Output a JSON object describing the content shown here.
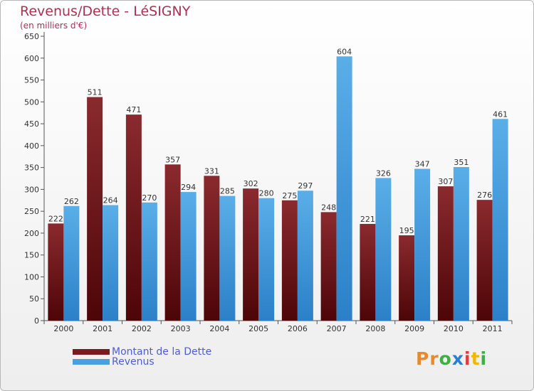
{
  "header": {
    "title": "Revenus/Dette - LéSIGNY",
    "subtitle": "(en milliers d'€)"
  },
  "legend": {
    "items": [
      {
        "label": "Montant de la Dette",
        "color": "#7a1a1f"
      },
      {
        "label": "Revenus",
        "color": "#4a9fe0"
      }
    ]
  },
  "brand": {
    "logo_text": "Proxiti",
    "logo_colors": [
      "#e8892b",
      "#e8892b",
      "#3cb043",
      "#2a7fd4",
      "#e23b3b",
      "#f2b705",
      "#3cb043"
    ]
  },
  "chart_data": {
    "type": "bar",
    "title": "Revenus/Dette - LéSIGNY",
    "subtitle": "(en milliers d'€)",
    "categories": [
      "2000",
      "2001",
      "2002",
      "2003",
      "2004",
      "2005",
      "2006",
      "2007",
      "2008",
      "2009",
      "2010",
      "2011"
    ],
    "series": [
      {
        "name": "Montant de la Dette",
        "color": "#7a1a1f",
        "values": [
          222,
          511,
          471,
          357,
          331,
          302,
          275,
          248,
          221,
          195,
          307,
          276
        ]
      },
      {
        "name": "Revenus",
        "color": "#4a9fe0",
        "values": [
          262,
          264,
          270,
          294,
          285,
          280,
          297,
          604,
          326,
          347,
          351,
          461
        ]
      }
    ],
    "ylim": [
      0,
      650
    ],
    "ytick_step": 50,
    "grid": false,
    "legend_position": "bottom-left"
  }
}
